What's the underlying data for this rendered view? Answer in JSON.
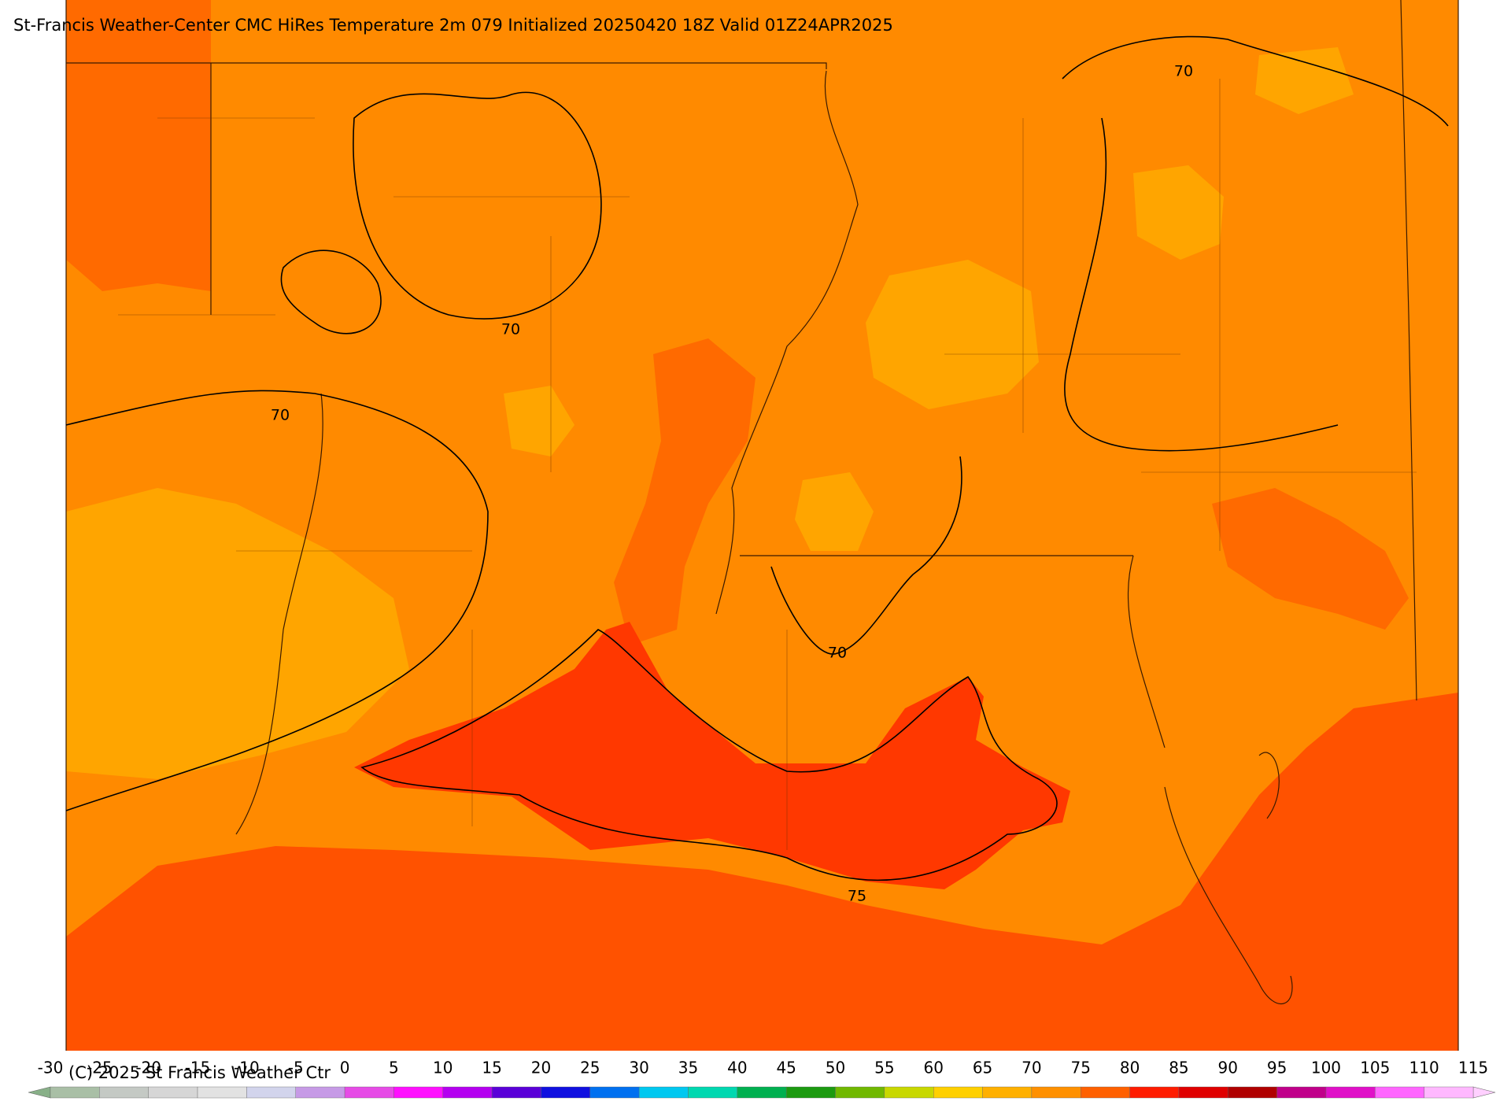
{
  "header": {
    "title": "St-Francis Weather-Center CMC HiRes Temperature 2m  079 Initialized 20250420 18Z Valid 01Z24APR2025"
  },
  "map": {
    "contour_labels": [
      "70",
      "70",
      "70",
      "70",
      "75"
    ]
  },
  "colorbar": {
    "ticks": [
      -30,
      -25,
      -20,
      -15,
      -10,
      -5,
      0,
      5,
      10,
      15,
      20,
      25,
      30,
      35,
      40,
      45,
      50,
      55,
      60,
      65,
      70,
      75,
      80,
      85,
      90,
      95,
      100,
      105,
      110,
      115
    ],
    "colors": [
      "#a9bfa6",
      "#c4c9c4",
      "#d6d6d6",
      "#e2e2e2",
      "#d2d4ec",
      "#c69ae6",
      "#e64be6",
      "#ff10ff",
      "#b400f0",
      "#5a00d8",
      "#1010e0",
      "#0070f0",
      "#00c8f0",
      "#00d8b0",
      "#00b050",
      "#1c9a10",
      "#70b800",
      "#c8d800",
      "#ffd000",
      "#ffb000",
      "#ff9000",
      "#ff6000",
      "#ff1c00",
      "#e00000",
      "#b00000",
      "#c0008a",
      "#e010c8",
      "#ff66ff",
      "#ffb8ff"
    ],
    "under_color": "#88b088",
    "over_color": "#ffd0ff"
  },
  "footer": {
    "copyright": "(C) 2025 St Francis Weather Ctr"
  }
}
